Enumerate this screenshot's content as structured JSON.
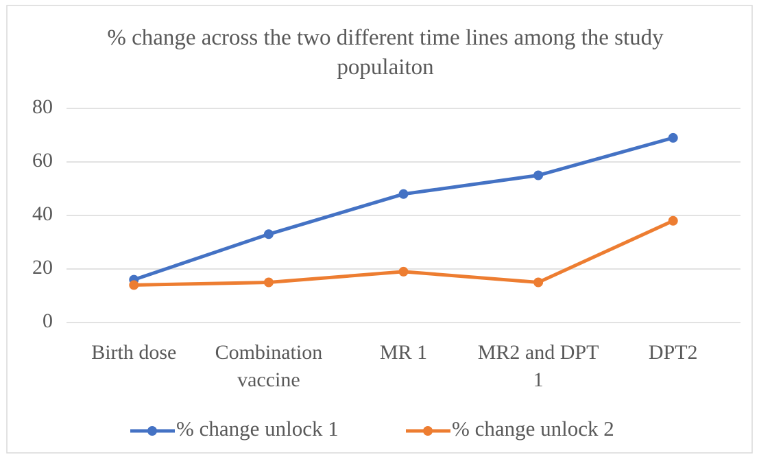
{
  "chart_data": {
    "type": "line",
    "title": "% change across the two different time lines among the study populaiton",
    "categories": [
      "Birth dose",
      "Combination vaccine",
      "MR 1",
      "MR2 and DPT 1",
      "DPT2"
    ],
    "series": [
      {
        "name": "% change unlock 1",
        "color": "#4472c4",
        "values": [
          16,
          33,
          48,
          55,
          69
        ]
      },
      {
        "name": "% change unlock 2",
        "color": "#ed7d31",
        "values": [
          14,
          15,
          19,
          15,
          38
        ]
      }
    ],
    "ylim": [
      0,
      80
    ],
    "yticks": [
      0,
      20,
      40,
      60,
      80
    ],
    "grid": true,
    "legend": "bottom"
  }
}
